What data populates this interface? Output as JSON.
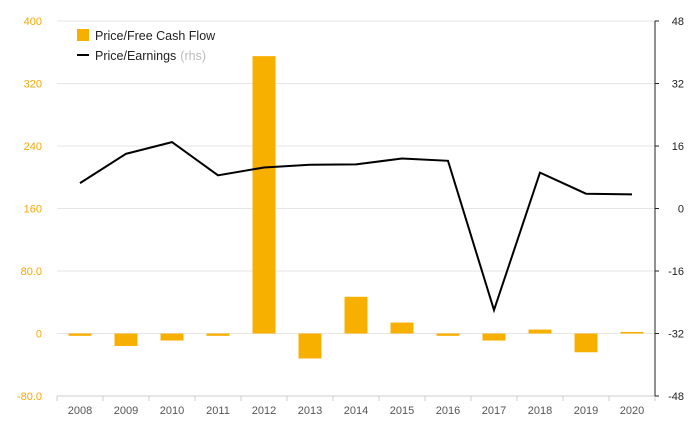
{
  "chart_data": {
    "type": "bar",
    "categories": [
      "2008",
      "2009",
      "2010",
      "2011",
      "2012",
      "2013",
      "2014",
      "2015",
      "2016",
      "2017",
      "2018",
      "2019",
      "2020"
    ],
    "series": [
      {
        "name": "Price/Free Cash Flow",
        "type": "bar",
        "axis": "left",
        "color": "#f8b000",
        "values": [
          -3,
          -16,
          -9,
          -3,
          355,
          -32,
          47,
          14,
          -3,
          -9,
          5,
          -24,
          2
        ]
      },
      {
        "name": "Price/Earnings",
        "type": "line",
        "axis": "right",
        "note": "(rhs)",
        "color": "#000000",
        "values": [
          6.5,
          14,
          17,
          8.5,
          10.5,
          11.2,
          11.3,
          12.8,
          12.2,
          -26,
          9.2,
          3.8,
          3.6
        ]
      }
    ],
    "y_left": {
      "ylim": [
        -80,
        400
      ],
      "ticks": [
        -80,
        0,
        80,
        160,
        240,
        320,
        400
      ],
      "tick_labels": [
        "-80.0",
        "0",
        "80.0",
        "160",
        "240",
        "320",
        "400"
      ]
    },
    "y_right": {
      "ylim": [
        -48,
        48
      ],
      "ticks": [
        -48,
        -32,
        -16,
        0,
        16,
        32,
        48
      ],
      "tick_labels": [
        "-48",
        "-32",
        "-16",
        "0",
        "16",
        "32",
        "48"
      ]
    },
    "grid": true,
    "legend_position": "top-left"
  }
}
